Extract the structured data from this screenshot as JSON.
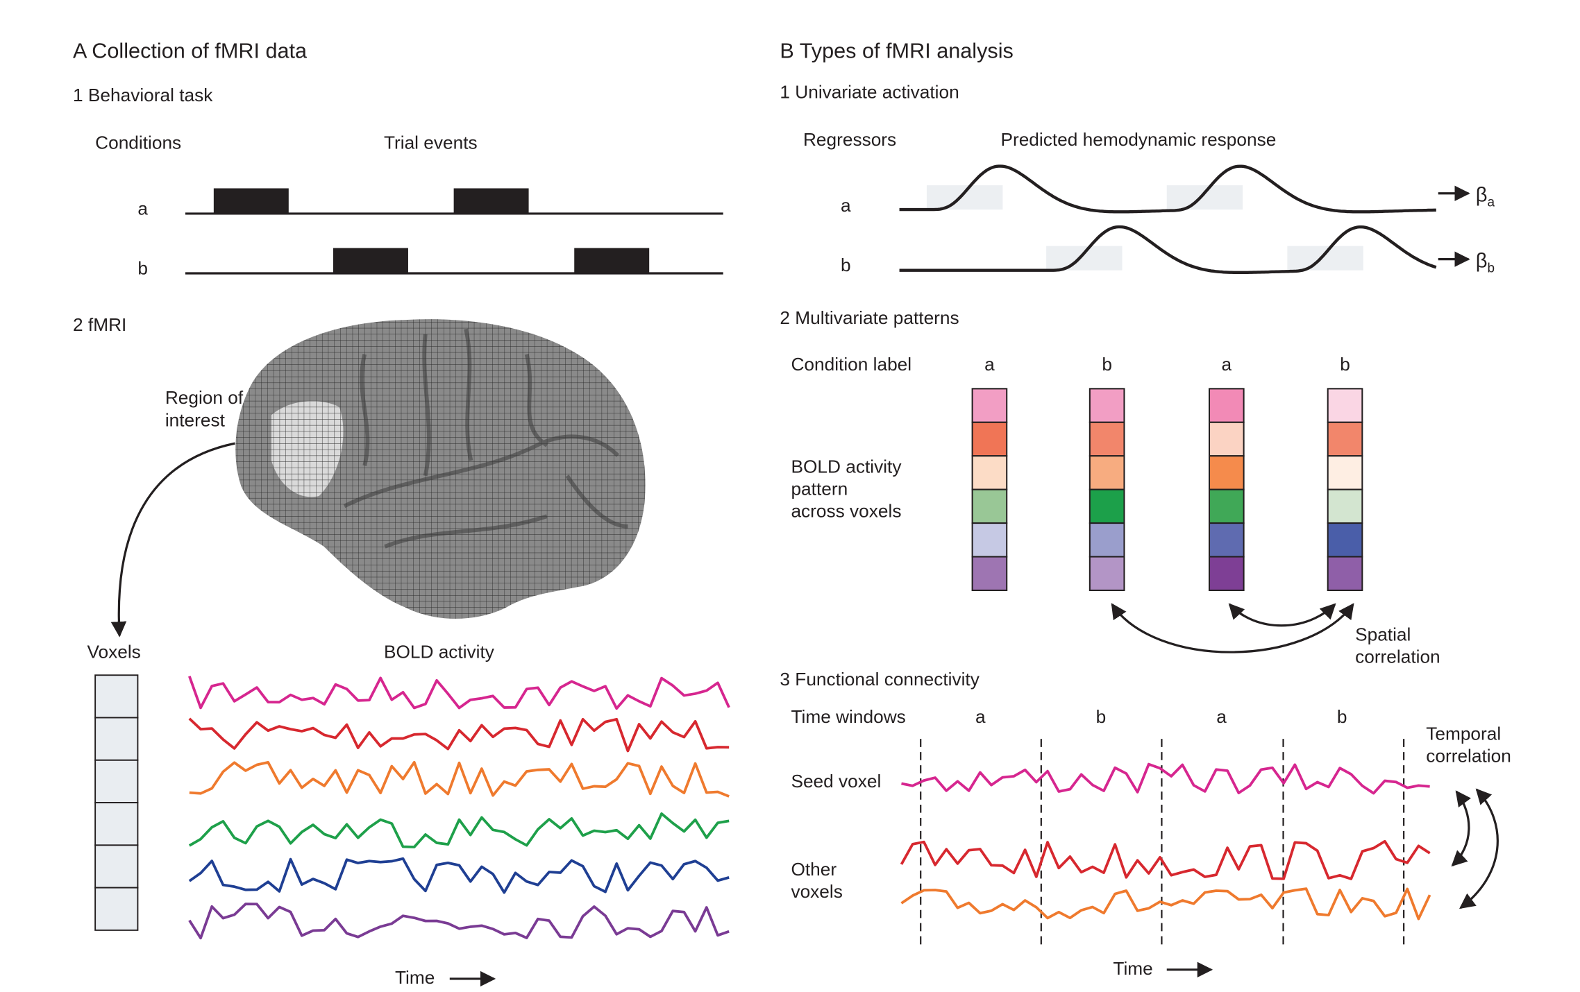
{
  "panelA": {
    "title": "A  Collection of fMRI data",
    "task_heading": "1  Behavioral task",
    "conditions_label": "Conditions",
    "trial_events_label": "Trial events",
    "cond_a": "a",
    "cond_b": "b",
    "fmri_heading": "2  fMRI",
    "roi_line1": "Region of",
    "roi_line2": "interest",
    "voxels_label": "Voxels",
    "bold_label": "BOLD activity",
    "time_label": "Time",
    "series_colors": [
      "#d6268f",
      "#d7282f",
      "#ef7a2e",
      "#1ea04a",
      "#1f3f93",
      "#7a3b94"
    ]
  },
  "panelB": {
    "title": "B  Types of fMRI analysis",
    "univariate_heading": "1  Univariate activation",
    "regressors_label": "Regressors",
    "hrf_label": "Predicted hemodynamic response",
    "cond_a": "a",
    "cond_b": "b",
    "beta": "β",
    "beta_a_sub": "a",
    "beta_b_sub": "b",
    "multivariate_heading": "2  Multivariate patterns",
    "condition_label": "Condition label",
    "column_labels": [
      "a",
      "b",
      "a",
      "b"
    ],
    "bold_pattern_line1": "BOLD activity",
    "bold_pattern_line2": "pattern",
    "bold_pattern_line3": "across voxels",
    "pattern_colors": [
      [
        "#f29ec4",
        "#f07556",
        "#fcdcc6",
        "#99c796",
        "#c6c9e4",
        "#9e75b2"
      ],
      [
        "#f29ec4",
        "#f2866b",
        "#f7ac80",
        "#1ca04a",
        "#9a9ecc",
        "#b395c6"
      ],
      [
        "#f28ab6",
        "#fbd3c3",
        "#f58b4c",
        "#40a857",
        "#5f6bb0",
        "#7e3f95"
      ],
      [
        "#fad6e4",
        "#f2866b",
        "#feeee3",
        "#d3e5d0",
        "#4a5ea9",
        "#8f5fa8"
      ]
    ],
    "spatial_line1": "Spatial",
    "spatial_line2": "correlation",
    "connectivity_heading": "3  Functional connectivity",
    "time_windows_label": "Time windows",
    "window_labels": [
      "a",
      "b",
      "a",
      "b"
    ],
    "seed_voxel_label": "Seed voxel",
    "other_line1": "Other",
    "other_line2": "voxels",
    "temporal_line1": "Temporal",
    "temporal_line2": "correlation",
    "time_label": "Time",
    "connectivity_colors": [
      "#d6268f",
      "#d7282f",
      "#ef7a2e"
    ]
  }
}
